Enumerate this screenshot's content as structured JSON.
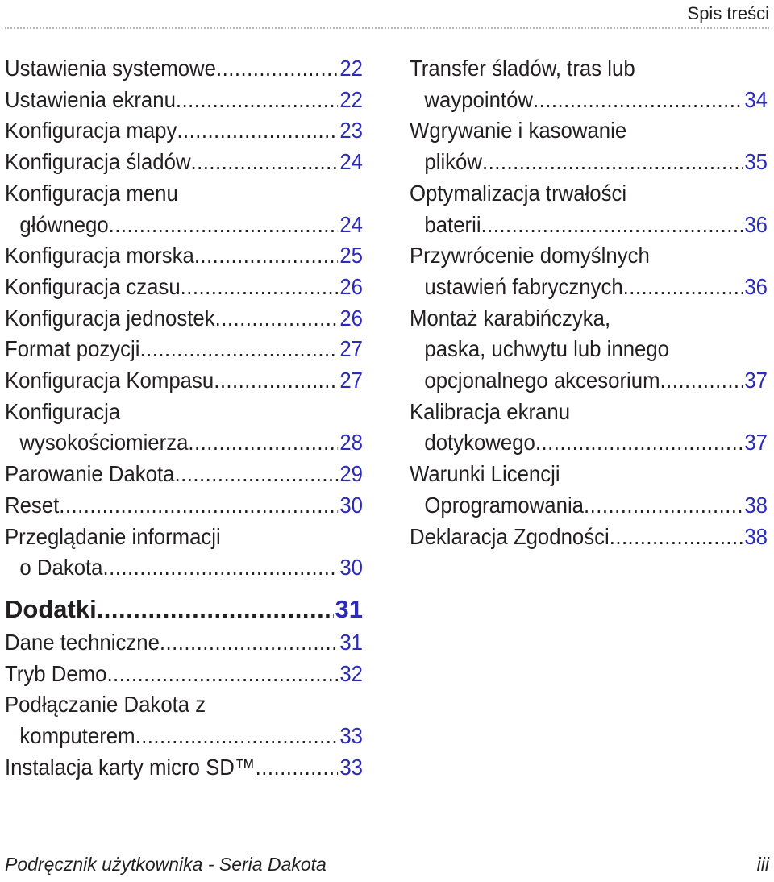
{
  "header": {
    "title": "Spis treści"
  },
  "left_column": {
    "entries_a": [
      {
        "lines": [
          "Ustawienia systemowe"
        ],
        "page": "22"
      },
      {
        "lines": [
          "Ustawienia ekranu"
        ],
        "page": "22"
      },
      {
        "lines": [
          "Konfiguracja mapy"
        ],
        "page": "23"
      },
      {
        "lines": [
          "Konfiguracja śladów"
        ],
        "page": "24"
      },
      {
        "lines": [
          "Konfiguracja menu",
          "głównego"
        ],
        "page": "24"
      },
      {
        "lines": [
          "Konfiguracja morska"
        ],
        "page": "25"
      },
      {
        "lines": [
          "Konfiguracja czasu"
        ],
        "page": "26"
      },
      {
        "lines": [
          "Konfiguracja jednostek"
        ],
        "page": "26"
      },
      {
        "lines": [
          "Format pozycji"
        ],
        "page": "27"
      },
      {
        "lines": [
          "Konfiguracja Kompasu"
        ],
        "page": "27"
      },
      {
        "lines": [
          "Konfiguracja",
          "wysokościomierza"
        ],
        "page": "28"
      },
      {
        "lines": [
          "Parowanie Dakota"
        ],
        "page": "29"
      },
      {
        "lines": [
          "Reset"
        ],
        "page": "30"
      },
      {
        "lines": [
          "Przeglądanie informacji",
          "o Dakota"
        ],
        "page": "30"
      }
    ],
    "section": {
      "title": "Dodatki",
      "page": "31"
    },
    "entries_b": [
      {
        "lines": [
          "Dane techniczne"
        ],
        "page": "31"
      },
      {
        "lines": [
          "Tryb Demo"
        ],
        "page": "32"
      },
      {
        "lines": [
          "Podłączanie Dakota z",
          "komputerem"
        ],
        "page": "33"
      },
      {
        "lines": [
          "Instalacja karty micro SD™ "
        ],
        "page": "33"
      }
    ]
  },
  "right_column": {
    "entries": [
      {
        "lines": [
          "Transfer śladów, tras lub",
          "waypointów"
        ],
        "page": "34"
      },
      {
        "lines": [
          "Wgrywanie i kasowanie",
          "plików"
        ],
        "page": "35"
      },
      {
        "lines": [
          "Optymalizacja trwałości",
          "baterii"
        ],
        "page": "36"
      },
      {
        "lines": [
          "Przywrócenie domyślnych",
          "ustawień fabrycznych"
        ],
        "page": "36"
      },
      {
        "lines": [
          "Montaż karabińczyka,",
          "paska, uchwytu lub innego",
          "opcjonalnego akcesorium"
        ],
        "page": "37"
      },
      {
        "lines": [
          "Kalibracja ekranu",
          "dotykowego"
        ],
        "page": "37"
      },
      {
        "lines": [
          "Warunki Licencji",
          "Oprogramowania"
        ],
        "page": "38"
      },
      {
        "lines": [
          "Deklaracja Zgodności"
        ],
        "page": "38"
      }
    ]
  },
  "footer": {
    "manual_title": "Podręcznik użytkownika - Seria Dakota",
    "page_number": "iii"
  },
  "colors": {
    "text": "#231f20",
    "page_link": "#2b2bb8",
    "rule": "#b5b5b5"
  }
}
